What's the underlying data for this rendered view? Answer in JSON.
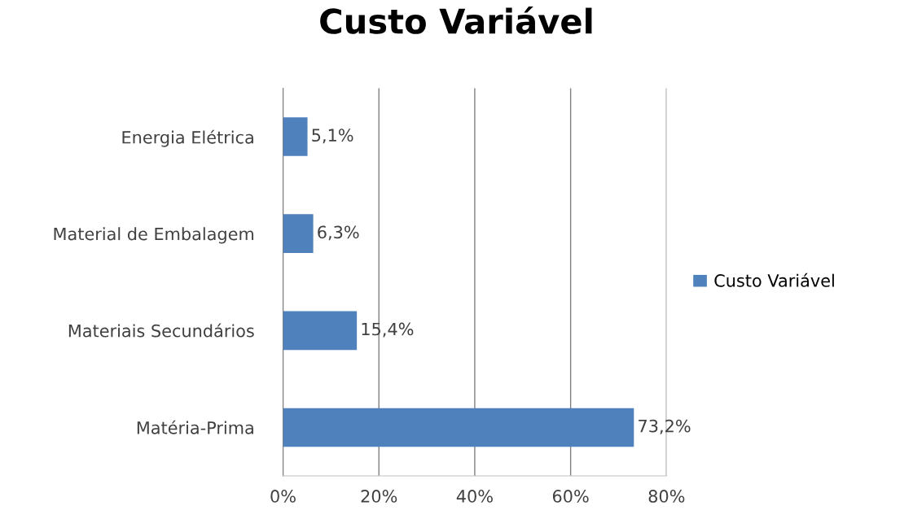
{
  "chart_data": {
    "type": "bar",
    "orientation": "horizontal",
    "title": "Custo Variável",
    "categories": [
      "Energia Elétrica",
      "Material de Embalagem",
      "Materiais Secundários",
      "Matéria-Prima"
    ],
    "series": [
      {
        "name": "Custo Variável",
        "color": "#4f81bd",
        "values": [
          5.1,
          6.3,
          15.4,
          73.2
        ],
        "value_labels": [
          "5,1%",
          "6,3%",
          "15,4%",
          "73,2%"
        ]
      }
    ],
    "xlim": [
      0,
      80
    ],
    "xticks": [
      {
        "value": 0,
        "label": "0%"
      },
      {
        "value": 20,
        "label": "20%"
      },
      {
        "value": 40,
        "label": "40%"
      },
      {
        "value": 60,
        "label": "60%"
      },
      {
        "value": 80,
        "label": "80%"
      }
    ],
    "grid": "x",
    "legend": "right"
  }
}
